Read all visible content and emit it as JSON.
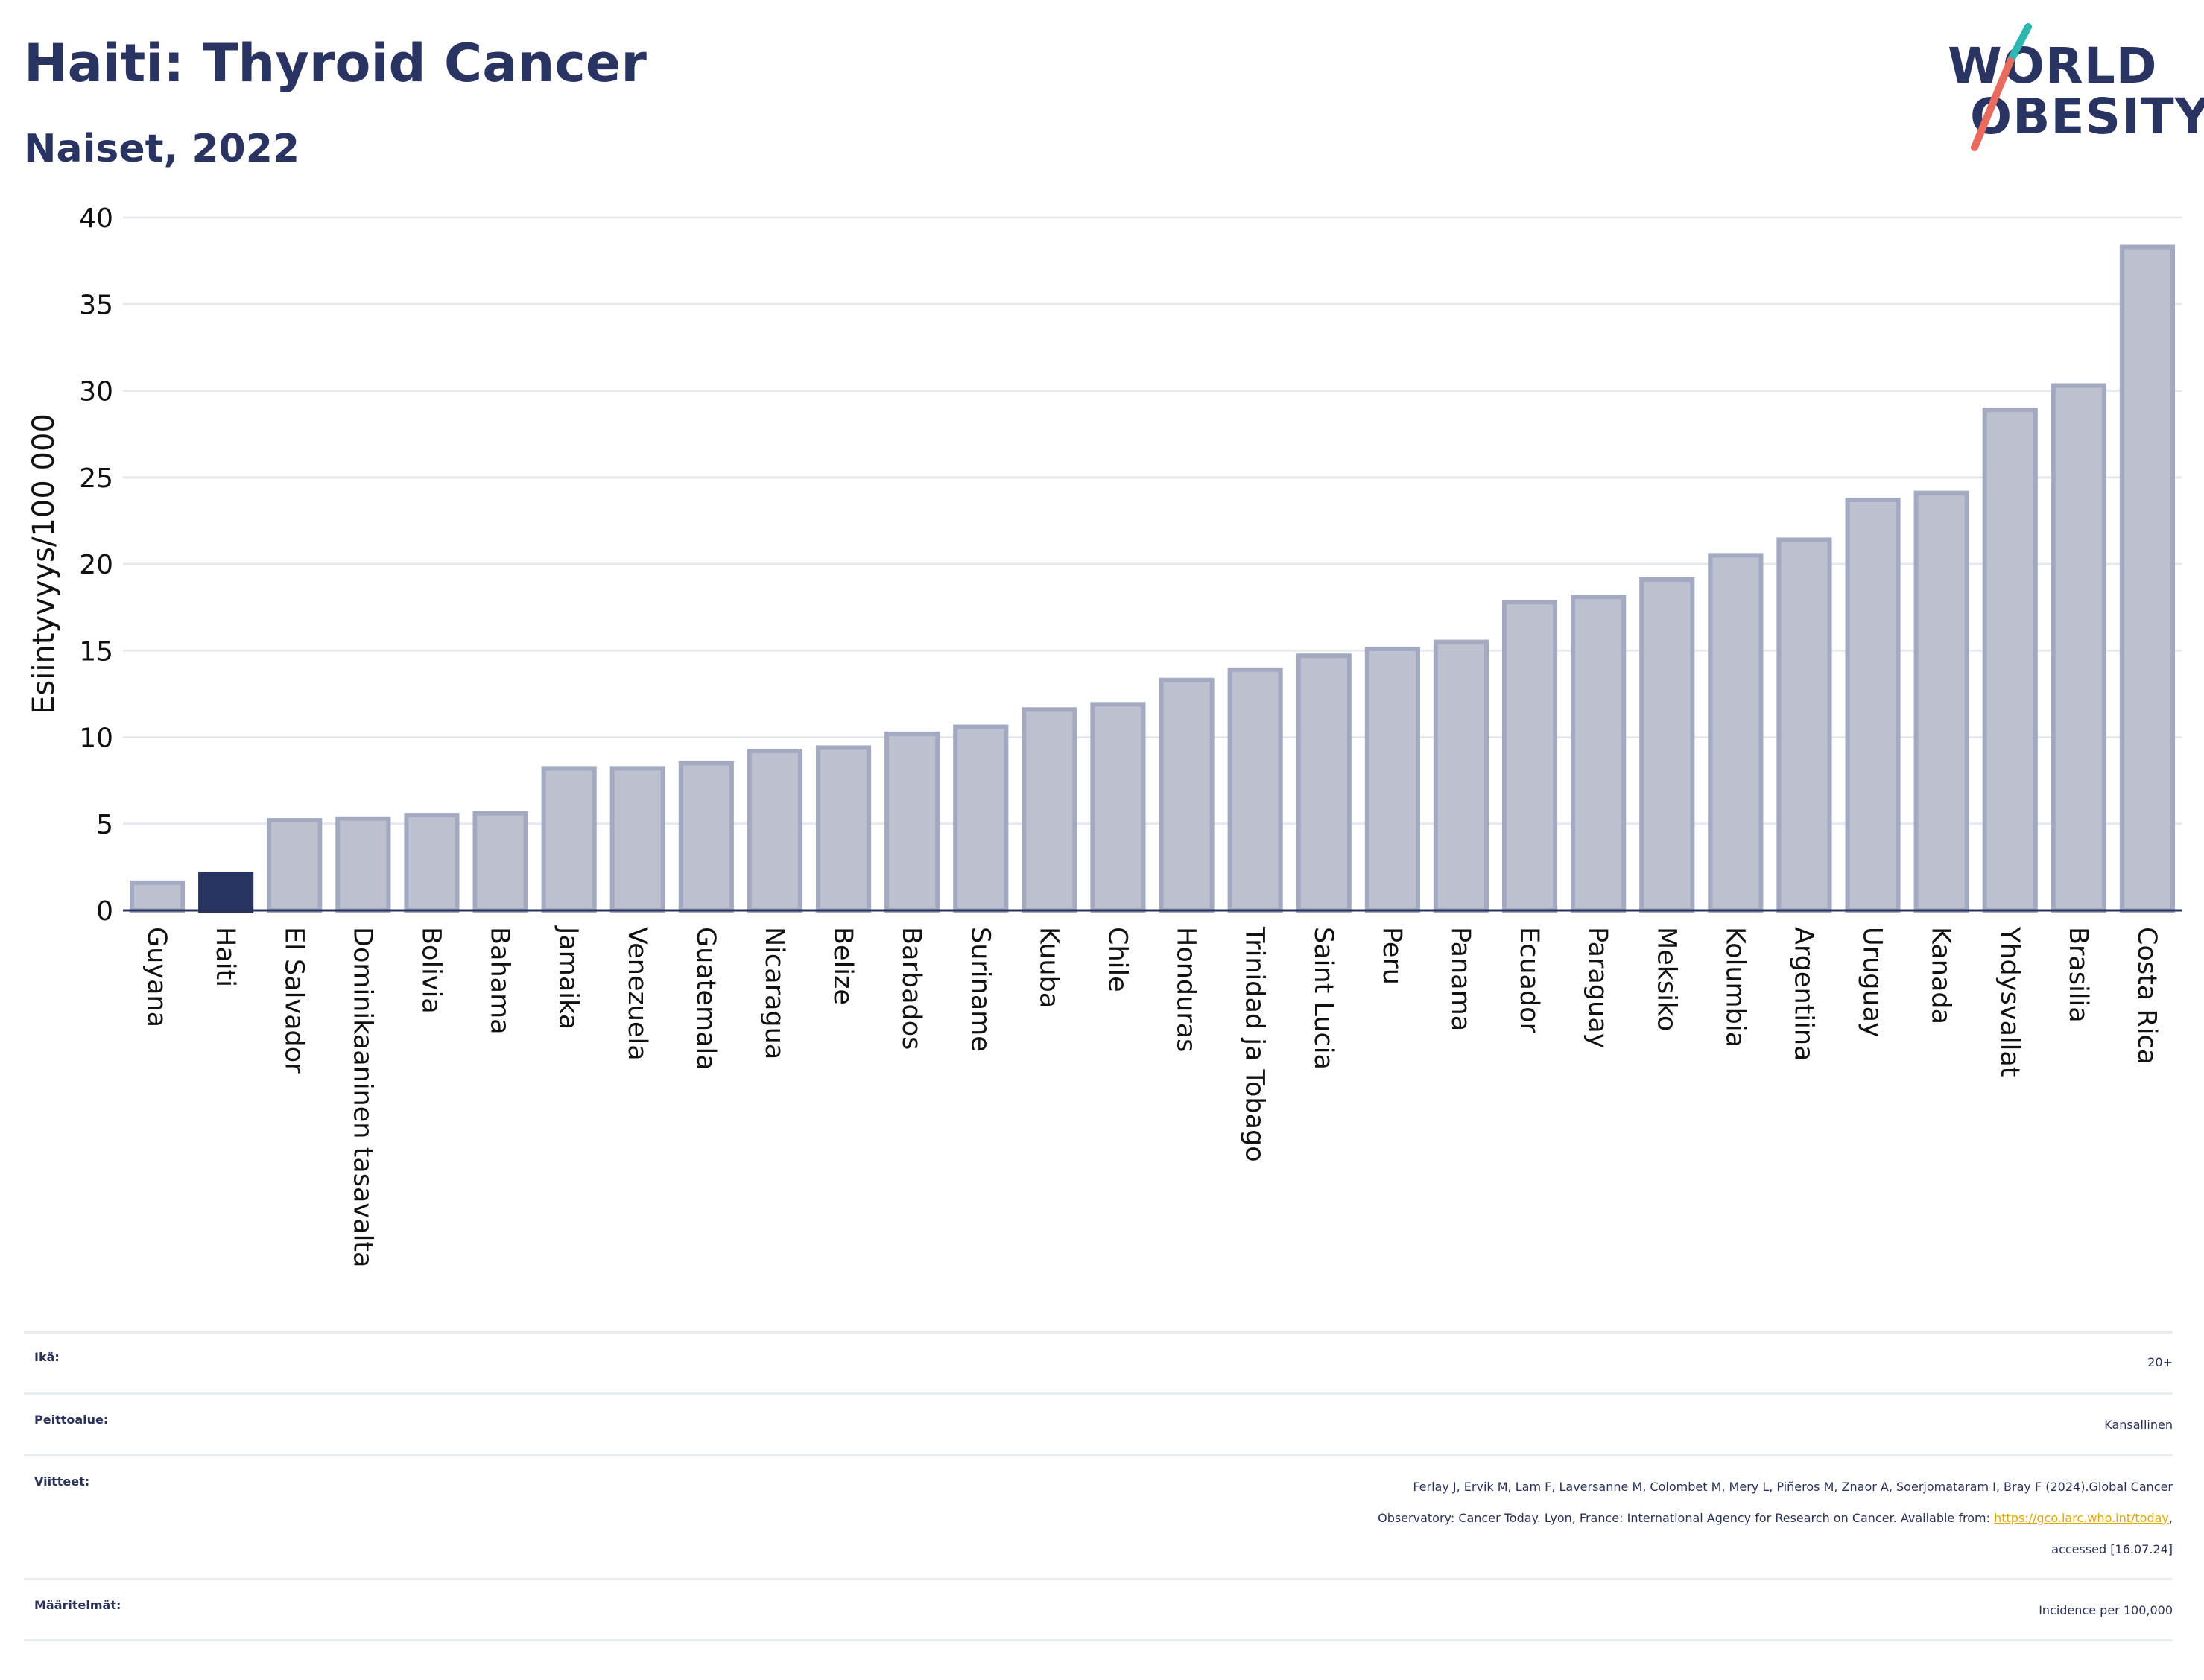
{
  "title": "Haiti: Thyroid Cancer",
  "subtitle": "Naiset, 2022",
  "logo": {
    "line1": "WORLD",
    "line2": "OBESITY"
  },
  "colors": {
    "bar": "#bcc0cf",
    "bar_border": "#a3a9c0",
    "highlight": "#2a3462",
    "accent_teal": "#2cb7b1",
    "accent_coral": "#e86b5d"
  },
  "chart_data": {
    "type": "bar",
    "ylabel": "Esiintyvyys/100 000",
    "xlabel": "",
    "ylim": [
      0,
      40
    ],
    "yticks": [
      0,
      5,
      10,
      15,
      20,
      25,
      30,
      35,
      40
    ],
    "highlight": "Haiti",
    "categories": [
      "Guyana",
      "Haiti",
      "El Salvador",
      "Dominikaaninen tasavalta",
      "Bolivia",
      "Bahama",
      "Jamaika",
      "Venezuela",
      "Guatemala",
      "Nicaragua",
      "Belize",
      "Barbados",
      "Suriname",
      "Kuuba",
      "Chile",
      "Honduras",
      "Trinidad ja Tobago",
      "Saint Lucia",
      "Peru",
      "Panama",
      "Ecuador",
      "Paraguay",
      "Meksiko",
      "Kolumbia",
      "Argentiina",
      "Uruguay",
      "Kanada",
      "Yhdysvallat",
      "Brasilia",
      "Costa Rica"
    ],
    "values": [
      1.6,
      2.1,
      5.2,
      5.3,
      5.5,
      5.6,
      8.2,
      8.2,
      8.5,
      9.2,
      9.4,
      10.2,
      10.6,
      11.6,
      11.9,
      13.3,
      13.9,
      14.7,
      15.1,
      15.5,
      17.8,
      18.1,
      19.1,
      20.5,
      21.4,
      23.7,
      24.1,
      28.9,
      30.3,
      38.3
    ],
    "grid": true
  },
  "meta": [
    {
      "label": "Ikä:",
      "value": [
        "20+"
      ]
    },
    {
      "label": "Peittoalue:",
      "value": [
        "Kansallinen"
      ]
    },
    {
      "label": "Viitteet:",
      "value": [
        "Ferlay J, Ervik M, Lam F, Laversanne M, Colombet M, Mery L, Piñeros M, Znaor A, Soerjomataram I, Bray F (2024).Global Cancer",
        "Observatory: Cancer Today. Lyon, France: International Agency for Research on Cancer. Available from: ",
        "https://gco.iarc.who.int/today",
        ",",
        "accessed [16.07.24]"
      ]
    },
    {
      "label": "Määritelmät:",
      "value": [
        "Incidence per 100,000"
      ]
    }
  ]
}
